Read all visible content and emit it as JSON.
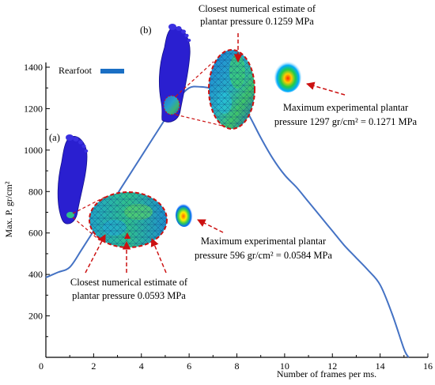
{
  "chart_data": {
    "type": "line",
    "xlabel": "Number of frames per ms.",
    "ylabel": "Max. P. gr/cm²",
    "xlim": [
      0,
      16
    ],
    "ylim": [
      0,
      1400
    ],
    "x_ticks": [
      "0",
      "2",
      "4",
      "6",
      "8",
      "10",
      "12",
      "14",
      "16"
    ],
    "y_ticks": [
      "200",
      "400",
      "600",
      "800",
      "1000",
      "1200",
      "1400"
    ],
    "grid": false,
    "legend": "top-left",
    "series": [
      {
        "name": "Rearfoot",
        "color": "#4472c4",
        "x": [
          0,
          0.5,
          1.0,
          1.5,
          2.0,
          2.5,
          3.0,
          3.5,
          4.0,
          4.5,
          5.0,
          5.5,
          6.0,
          6.5,
          7.0,
          7.5,
          8.0,
          8.5,
          9.0,
          9.5,
          10.0,
          10.5,
          11.0,
          11.5,
          12.0,
          12.5,
          13.0,
          13.5,
          14.0,
          14.5,
          15.0,
          15.2
        ],
        "values": [
          385,
          410,
          435,
          520,
          610,
          700,
          790,
          880,
          970,
          1060,
          1150,
          1240,
          1300,
          1305,
          1297,
          1285,
          1260,
          1170,
          1060,
          960,
          880,
          820,
          750,
          680,
          610,
          540,
          480,
          420,
          350,
          210,
          40,
          0
        ]
      }
    ],
    "panel_labels": [
      "(a)",
      "(b)"
    ],
    "annotations": {
      "b_numerical": [
        "Closest numerical estimate of",
        "plantar pressure 0.1259 MPa"
      ],
      "b_experimental": [
        "Maximum experimental plantar",
        "pressure 1297 gr/cm² = 0.1271 MPa"
      ],
      "a_experimental": [
        "Maximum experimental plantar",
        "pressure 596 gr/cm² = 0.0584 MPa"
      ],
      "a_numerical": [
        "Closest numerical estimate of",
        "plantar pressure 0.0593 MPa"
      ]
    },
    "colors": {
      "foot": "#2222cc",
      "callout": "#cc1111",
      "axis": "#000000"
    }
  }
}
